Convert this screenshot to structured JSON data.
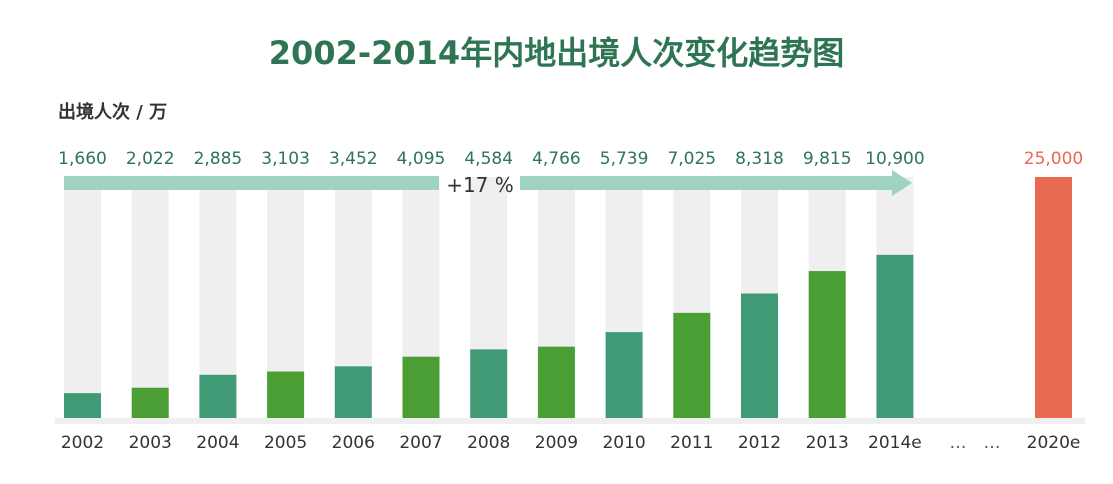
{
  "chart_data": {
    "type": "bar",
    "title": "2002-2014年内地出境人次变化趋势图",
    "ylabel": "出境人次 / 万",
    "xlabel": "",
    "categories": [
      "2002",
      "2003",
      "2004",
      "2005",
      "2006",
      "2007",
      "2008",
      "2009",
      "2010",
      "2011",
      "2012",
      "2013",
      "2014e",
      "2020e"
    ],
    "values": [
      1660,
      2022,
      2885,
      3103,
      3452,
      4095,
      4584,
      4766,
      5739,
      7025,
      8318,
      9815,
      10900,
      25000
    ],
    "value_labels": [
      "1,660",
      "2,022",
      "2,885",
      "3,103",
      "3,452",
      "4,095",
      "4,584",
      "4,766",
      "5,739",
      "7,025",
      "8,318",
      "9,815",
      "10,900",
      "25,000"
    ],
    "ylim": [
      0,
      16100
    ],
    "gap_label": "…",
    "annotation": "+17 %",
    "grid": false,
    "colors": {
      "bar_teal": "#419a76",
      "bar_green": "#4a9e33",
      "bar_highlight": "#e86a52",
      "background_column": "#efefef",
      "arrow": "#9fd3c0",
      "label_teal": "#2e7553",
      "label_red": "#e86a52",
      "title": "#2e7553"
    }
  }
}
